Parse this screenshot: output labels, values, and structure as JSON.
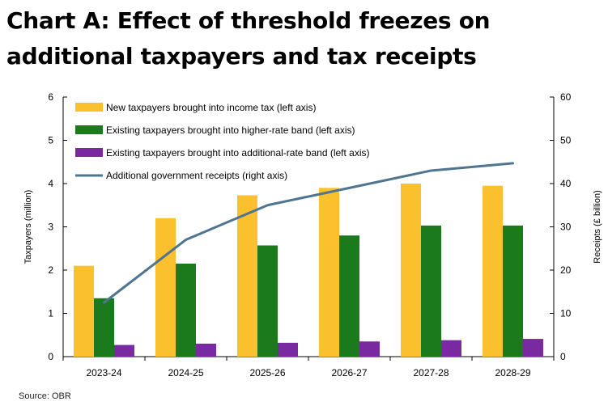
{
  "title": "Chart A: Effect of threshold freezes on additional taxpayers and tax receipts",
  "source": "Source: OBR",
  "chart_data": {
    "type": "bar",
    "categories": [
      "2023-24",
      "2024-25",
      "2025-26",
      "2026-27",
      "2027-28",
      "2028-29"
    ],
    "ylabel": "Taxpayers (million)",
    "ylim": [
      0,
      6
    ],
    "yticks": [
      "0",
      "1",
      "2",
      "3",
      "4",
      "5",
      "6"
    ],
    "y2label": "Receipts (£ billion)",
    "y2lim": [
      0,
      60
    ],
    "y2ticks": [
      "0",
      "10",
      "20",
      "30",
      "40",
      "50",
      "60"
    ],
    "grid": false,
    "legend_position": "top-left",
    "series": [
      {
        "name": "New taxpayers brought into income tax (left axis)",
        "type": "bar",
        "axis": "left",
        "color": "#FBC02D",
        "values": [
          2.1,
          3.2,
          3.73,
          3.9,
          4.0,
          3.95
        ]
      },
      {
        "name": "Existing taxpayers brought into higher-rate band (left axis)",
        "type": "bar",
        "axis": "left",
        "color": "#1B7A1B",
        "values": [
          1.35,
          2.15,
          2.57,
          2.8,
          3.03,
          3.03
        ]
      },
      {
        "name": "Existing taxpayers brought into additional-rate band (left axis)",
        "type": "bar",
        "axis": "left",
        "color": "#7A2AA0",
        "values": [
          0.27,
          0.3,
          0.32,
          0.35,
          0.38,
          0.41
        ]
      },
      {
        "name": "Additional government receipts (right axis)",
        "type": "line",
        "axis": "right",
        "color": "#4F7590",
        "values": [
          12.5,
          27.0,
          35.0,
          39.0,
          43.0,
          44.7
        ]
      }
    ]
  }
}
